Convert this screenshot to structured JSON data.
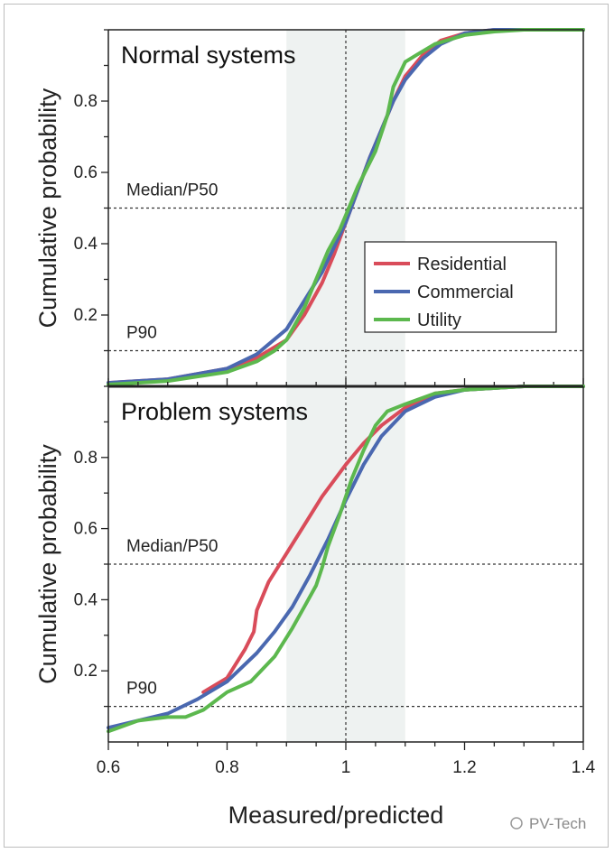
{
  "chart_data": [
    {
      "type": "line",
      "title": "Normal systems",
      "ylabel": "Cumulative probability",
      "xlabel": "",
      "xlim": [
        0.6,
        1.4
      ],
      "ylim": [
        0,
        1.0
      ],
      "y_ticks": [
        0.2,
        0.4,
        0.6,
        0.8
      ],
      "x_ticks": [
        0.6,
        0.8,
        1,
        1.2,
        1.4
      ],
      "shaded_band": [
        0.9,
        1.1
      ],
      "vline": 1.0,
      "hlines": [
        {
          "y": 0.5,
          "label": "Median/P50"
        },
        {
          "y": 0.1,
          "label": "P90"
        }
      ],
      "legend": {
        "position": "center-right",
        "entries": [
          "Residential",
          "Commercial",
          "Utility"
        ]
      },
      "series": [
        {
          "name": "Residential",
          "color": "#d94c5a",
          "x": [
            0.6,
            0.7,
            0.8,
            0.85,
            0.9,
            0.93,
            0.96,
            0.98,
            1.0,
            1.02,
            1.04,
            1.06,
            1.08,
            1.1,
            1.13,
            1.16,
            1.2,
            1.25,
            1.3,
            1.4
          ],
          "y": [
            0.01,
            0.02,
            0.05,
            0.08,
            0.13,
            0.2,
            0.29,
            0.37,
            0.46,
            0.55,
            0.64,
            0.72,
            0.8,
            0.87,
            0.93,
            0.97,
            0.99,
            1.0,
            1.0,
            1.0
          ]
        },
        {
          "name": "Commercial",
          "color": "#4a68b0",
          "x": [
            0.6,
            0.7,
            0.8,
            0.85,
            0.9,
            0.93,
            0.96,
            0.98,
            1.0,
            1.02,
            1.04,
            1.06,
            1.08,
            1.1,
            1.13,
            1.16,
            1.2,
            1.25,
            1.3,
            1.4
          ],
          "y": [
            0.01,
            0.02,
            0.05,
            0.09,
            0.16,
            0.24,
            0.32,
            0.39,
            0.46,
            0.55,
            0.64,
            0.72,
            0.8,
            0.86,
            0.92,
            0.96,
            0.99,
            1.0,
            1.0,
            1.0
          ]
        },
        {
          "name": "Utility",
          "color": "#5cb84e",
          "x": [
            0.6,
            0.7,
            0.8,
            0.85,
            0.88,
            0.9,
            0.93,
            0.95,
            0.97,
            0.99,
            1.0,
            1.02,
            1.05,
            1.07,
            1.08,
            1.1,
            1.12,
            1.15,
            1.2,
            1.25,
            1.3,
            1.4
          ],
          "y": [
            0.005,
            0.015,
            0.04,
            0.07,
            0.1,
            0.13,
            0.22,
            0.3,
            0.38,
            0.44,
            0.48,
            0.56,
            0.66,
            0.76,
            0.84,
            0.91,
            0.93,
            0.96,
            0.985,
            0.995,
            1.0,
            1.0
          ]
        }
      ]
    },
    {
      "type": "line",
      "title": "Problem systems",
      "ylabel": "Cumulative probability",
      "xlabel": "Measured/predicted",
      "xlim": [
        0.6,
        1.4
      ],
      "ylim": [
        0,
        1.0
      ],
      "y_ticks": [
        0.2,
        0.4,
        0.6,
        0.8
      ],
      "x_ticks": [
        0.6,
        0.8,
        1,
        1.2,
        1.4
      ],
      "shaded_band": [
        0.9,
        1.1
      ],
      "vline": 1.0,
      "hlines": [
        {
          "y": 0.5,
          "label": "Median/P50"
        },
        {
          "y": 0.1,
          "label": "P90"
        }
      ],
      "series": [
        {
          "name": "Residential",
          "color": "#d94c5a",
          "x": [
            0.76,
            0.8,
            0.83,
            0.845,
            0.85,
            0.87,
            0.9,
            0.93,
            0.96,
            1.0,
            1.03,
            1.06,
            1.1,
            1.15,
            1.2,
            1.3,
            1.4
          ],
          "y": [
            0.14,
            0.18,
            0.26,
            0.31,
            0.37,
            0.45,
            0.53,
            0.61,
            0.69,
            0.78,
            0.84,
            0.89,
            0.94,
            0.98,
            0.99,
            1.0,
            1.0
          ]
        },
        {
          "name": "Commercial",
          "color": "#4a68b0",
          "x": [
            0.6,
            0.7,
            0.75,
            0.8,
            0.85,
            0.88,
            0.91,
            0.94,
            0.97,
            1.0,
            1.03,
            1.06,
            1.1,
            1.15,
            1.2,
            1.3,
            1.4
          ],
          "y": [
            0.04,
            0.08,
            0.12,
            0.17,
            0.25,
            0.31,
            0.38,
            0.47,
            0.57,
            0.68,
            0.78,
            0.86,
            0.93,
            0.97,
            0.99,
            1.0,
            1.0
          ]
        },
        {
          "name": "Utility",
          "color": "#5cb84e",
          "x": [
            0.6,
            0.65,
            0.7,
            0.73,
            0.76,
            0.8,
            0.84,
            0.88,
            0.91,
            0.93,
            0.95,
            0.96,
            0.97,
            0.99,
            1.01,
            1.03,
            1.05,
            1.07,
            1.1,
            1.15,
            1.2,
            1.3,
            1.4
          ],
          "y": [
            0.03,
            0.06,
            0.07,
            0.07,
            0.09,
            0.14,
            0.17,
            0.24,
            0.32,
            0.38,
            0.44,
            0.49,
            0.55,
            0.64,
            0.74,
            0.82,
            0.89,
            0.93,
            0.95,
            0.98,
            0.99,
            1.0,
            1.0
          ]
        }
      ]
    }
  ],
  "watermark": {
    "text": "PV-Tech"
  }
}
